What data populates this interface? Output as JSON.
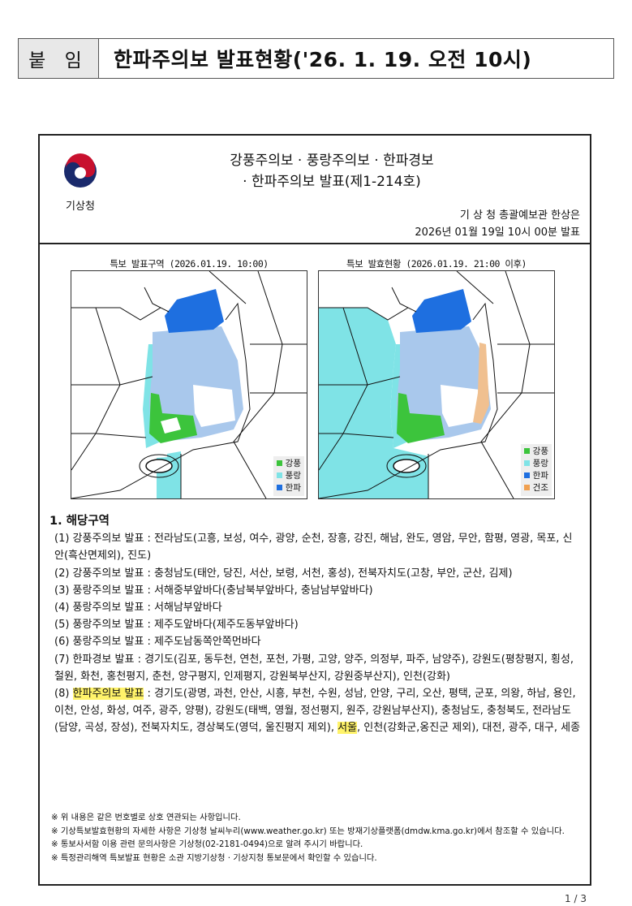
{
  "header": {
    "tag": "붙 임",
    "title": "한파주의보 발표현황('26. 1. 19. 오전 10시)"
  },
  "bulletin": {
    "org_logo_text": "기상청",
    "title_line1": "강풍주의보 · 풍랑주의보 · 한파경보",
    "title_line2": "· 한파주의보 발표(제1-214호)",
    "issuer": "기 상 청 총괄예보관 한상은",
    "issued_at": "2026년 01월 19일 10시 00분 발표"
  },
  "maps": [
    {
      "title": "특보 발표구역 (2026.01.19. 10:00)",
      "legend": [
        "강풍",
        "풍랑",
        "한파"
      ]
    },
    {
      "title": "특보 발효현황 (2026.01.19. 21:00 이후)",
      "legend": [
        "강풍",
        "풍랑",
        "한파",
        "건조"
      ]
    }
  ],
  "colors": {
    "강풍": "#3cc43c",
    "풍랑": "#7fe3e6",
    "한파": "#1e6fe0",
    "한파주의보": "#a9c8ec",
    "건조": "#f0a050",
    "highlight": "#fff36a"
  },
  "section": {
    "heading": "1. 해당구역",
    "items": [
      {
        "label": "(1) 강풍주의보 발표",
        "text": " : 전라남도(고흥, 보성, 여수, 광양, 순천, 장흥, 강진, 해남, 완도, 영암, 무안, 함평, 영광, 목포, 신안(흑산면제외), 진도)"
      },
      {
        "label": "(2) 강풍주의보 발표",
        "text": " : 충청남도(태안, 당진, 서산, 보령, 서천, 홍성), 전북자치도(고창, 부안, 군산, 김제)"
      },
      {
        "label": "(3) 풍랑주의보 발표",
        "text": " : 서해중부앞바다(충남북부앞바다, 충남남부앞바다)"
      },
      {
        "label": "(4) 풍랑주의보 발표",
        "text": " : 서해남부앞바다"
      },
      {
        "label": "(5) 풍랑주의보 발표",
        "text": " : 제주도앞바다(제주도동부앞바다)"
      },
      {
        "label": "(6) 풍랑주의보 발표",
        "text": " : 제주도남동쪽안쪽먼바다"
      },
      {
        "label": "(7) 한파경보 발표",
        "text": " : 경기도(김포, 동두천, 연천, 포천, 가평, 고양, 양주, 의정부, 파주, 남양주), 강원도(평창평지, 횡성, 철원, 화천, 홍천평지, 춘천, 양구평지, 인제평지, 강원북부산지, 강원중부산지), 인천(강화)"
      }
    ],
    "item8": {
      "num": "(8) ",
      "label": "한파주의보 발표",
      "text_a": " : 경기도(광명, 과천, 안산, 시흥, 부천, 수원, 성남, 안양, 구리, 오산, 평택, 군포, 의왕, 하남, 용인, 이천, 안성, 화성, 여주, 광주, 양평), 강원도(태백, 영월, 정선평지, 원주, 강원남부산지), 충청남도, 충청북도, 전라남도(담양, 곡성, 장성), 전북자치도, 경상북도(영덕, 울진평지 제외), ",
      "highlight": "서울",
      "text_b": ", 인천(강화군,옹진군 제외), 대전, 광주, 대구, 세종"
    }
  },
  "notes": [
    "※ 위 내용은 같은 번호별로 상호 연관되는 사항입니다.",
    "※ 기상특보발효현황의 자세한 사항은 기상청 날씨누리(www.weather.go.kr) 또는 방재기상플랫폼(dmdw.kma.go.kr)에서 참조할 수 있습니다.",
    "※ 통보사서함 이용 관련 문의사항은 기상청(02-2181-0494)으로 알려 주시기 바랍니다.",
    "※ 특정관리해역 특보발표 현황은 소관 지방기상청 · 기상지청 통보문에서 확인할 수 있습니다."
  ],
  "page_number": "1 / 3"
}
